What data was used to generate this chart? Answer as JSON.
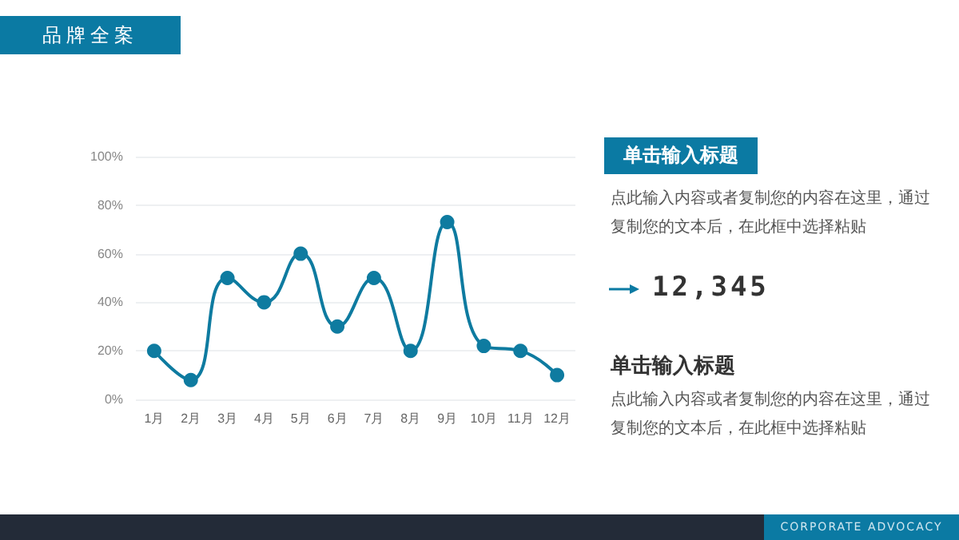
{
  "chart_data": {
    "type": "line",
    "title": "品牌全案",
    "categories": [
      "1月",
      "2月",
      "3月",
      "4月",
      "5月",
      "6月",
      "7月",
      "8月",
      "9月",
      "10月",
      "11月",
      "12月"
    ],
    "series": [
      {
        "color": "#0e7ba0",
        "values": [
          20,
          8,
          50,
          40,
          60,
          30,
          50,
          20,
          73,
          22,
          20,
          10
        ]
      }
    ],
    "ylim": [
      0,
      100
    ],
    "yticks": [
      {
        "value": 0,
        "label": "0%"
      },
      {
        "value": 20,
        "label": "20%"
      },
      {
        "value": 40,
        "label": "40%"
      },
      {
        "value": 60,
        "label": "60%"
      },
      {
        "value": 80,
        "label": "80%"
      },
      {
        "value": 100,
        "label": "100%"
      }
    ],
    "grid": "y",
    "marker": "circle",
    "line_style": "solid",
    "annotations": [
      "单击输入标题",
      "点此输入内容或者复制您的内容在这里，通过复制您的文本后，在此框中选择粘贴",
      "12,345",
      "单击输入标题",
      "点此输入内容或者复制您的内容在这里，通过复制您的文本后，在此框中选择粘贴",
      "CORPORATE ADVOCACY"
    ]
  }
}
